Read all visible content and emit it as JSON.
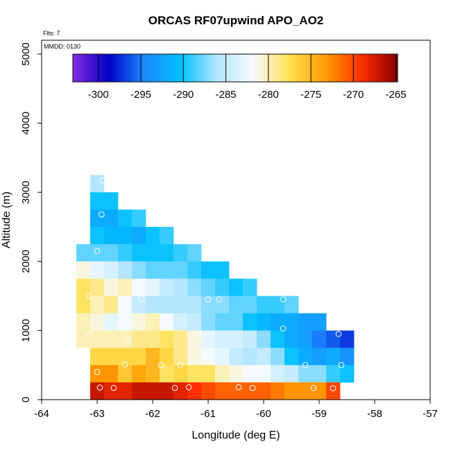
{
  "chart_data": {
    "type": "heatmap",
    "title": "ORCAS RF07upwind APO_AO2",
    "note_top": "Flts: 7",
    "note_inner": "MMDD: 0130",
    "xlabel": "Longitude (deg E)",
    "ylabel": "Altitude (m)",
    "xlim": [
      -64,
      -57
    ],
    "ylim": [
      0,
      5200
    ],
    "xticks": [
      -64,
      -63,
      -62,
      -61,
      -60,
      -59,
      -58,
      -57
    ],
    "yticks": [
      0,
      1000,
      2000,
      3000,
      4000,
      5000
    ],
    "grid": false,
    "colorbar": {
      "range": [
        -303,
        -264.8
      ],
      "ticks": [
        -300,
        -295,
        -290,
        -285,
        -280,
        -275,
        -270,
        -265
      ],
      "placement": "top inside plot"
    },
    "cell_size": {
      "lon": 0.25,
      "alt": 250
    },
    "cells": [
      [
        -63.0,
        3125,
        -286
      ],
      [
        -63.0,
        2875,
        -290
      ],
      [
        -62.75,
        2875,
        -290
      ],
      [
        -63.0,
        2625,
        -292
      ],
      [
        -62.75,
        2625,
        -292
      ],
      [
        -62.5,
        2625,
        -290
      ],
      [
        -62.25,
        2625,
        -289
      ],
      [
        -63.0,
        2375,
        -290
      ],
      [
        -62.75,
        2375,
        -291
      ],
      [
        -62.5,
        2375,
        -291
      ],
      [
        -62.25,
        2375,
        -292
      ],
      [
        -62.0,
        2375,
        -290
      ],
      [
        -61.75,
        2375,
        -289
      ],
      [
        -63.25,
        2125,
        -288
      ],
      [
        -63.0,
        2125,
        -288
      ],
      [
        -62.75,
        2125,
        -288
      ],
      [
        -62.5,
        2125,
        -289
      ],
      [
        -62.25,
        2125,
        -290
      ],
      [
        -62.0,
        2125,
        -290
      ],
      [
        -61.75,
        2125,
        -290
      ],
      [
        -61.5,
        2125,
        -289
      ],
      [
        -61.25,
        2125,
        -288
      ],
      [
        -63.25,
        1875,
        -281
      ],
      [
        -63.0,
        1875,
        -283
      ],
      [
        -62.75,
        1875,
        -284
      ],
      [
        -62.5,
        1875,
        -286
      ],
      [
        -62.25,
        1875,
        -287
      ],
      [
        -62.0,
        1875,
        -288
      ],
      [
        -61.75,
        1875,
        -288
      ],
      [
        -61.5,
        1875,
        -288
      ],
      [
        -61.25,
        1875,
        -289
      ],
      [
        -61.0,
        1875,
        -290
      ],
      [
        -60.75,
        1875,
        -290
      ],
      [
        -63.25,
        1625,
        -278
      ],
      [
        -63.0,
        1625,
        -279
      ],
      [
        -62.75,
        1625,
        -281
      ],
      [
        -62.5,
        1625,
        -280
      ],
      [
        -62.25,
        1625,
        -282
      ],
      [
        -62.0,
        1625,
        -283
      ],
      [
        -61.75,
        1625,
        -285
      ],
      [
        -61.5,
        1625,
        -286
      ],
      [
        -61.25,
        1625,
        -287
      ],
      [
        -61.0,
        1625,
        -288
      ],
      [
        -60.75,
        1625,
        -289
      ],
      [
        -60.5,
        1625,
        -290
      ],
      [
        -60.25,
        1625,
        -289
      ],
      [
        -63.25,
        1375,
        -278
      ],
      [
        -63.0,
        1375,
        -280
      ],
      [
        -62.75,
        1375,
        -279
      ],
      [
        -62.5,
        1375,
        -282
      ],
      [
        -62.25,
        1375,
        -285
      ],
      [
        -62.0,
        1375,
        -286
      ],
      [
        -61.75,
        1375,
        -286
      ],
      [
        -61.5,
        1375,
        -286
      ],
      [
        -61.25,
        1375,
        -286
      ],
      [
        -61.0,
        1375,
        -287
      ],
      [
        -60.75,
        1375,
        -287
      ],
      [
        -60.5,
        1375,
        -288
      ],
      [
        -60.25,
        1375,
        -288
      ],
      [
        -60.0,
        1375,
        -289
      ],
      [
        -59.75,
        1375,
        -289
      ],
      [
        -59.5,
        1375,
        -288
      ],
      [
        -63.25,
        1125,
        -280
      ],
      [
        -63.0,
        1125,
        -281
      ],
      [
        -62.75,
        1125,
        -283
      ],
      [
        -62.5,
        1125,
        -282
      ],
      [
        -62.25,
        1125,
        -281
      ],
      [
        -62.0,
        1125,
        -280
      ],
      [
        -61.75,
        1125,
        -282
      ],
      [
        -61.5,
        1125,
        -284
      ],
      [
        -61.25,
        1125,
        -285
      ],
      [
        -61.0,
        1125,
        -287
      ],
      [
        -60.75,
        1125,
        -288
      ],
      [
        -60.5,
        1125,
        -288
      ],
      [
        -60.25,
        1125,
        -290
      ],
      [
        -60.0,
        1125,
        -291
      ],
      [
        -59.75,
        1125,
        -292
      ],
      [
        -59.5,
        1125,
        -292
      ],
      [
        -59.25,
        1125,
        -293
      ],
      [
        -59.0,
        1125,
        -293
      ],
      [
        -63.25,
        875,
        -280
      ],
      [
        -63.0,
        875,
        -280
      ],
      [
        -62.75,
        875,
        -280
      ],
      [
        -62.5,
        875,
        -280
      ],
      [
        -62.25,
        875,
        -279
      ],
      [
        -62.0,
        875,
        -279
      ],
      [
        -61.75,
        875,
        -278
      ],
      [
        -61.5,
        875,
        -279
      ],
      [
        -61.25,
        875,
        -281
      ],
      [
        -61.0,
        875,
        -283
      ],
      [
        -60.75,
        875,
        -284
      ],
      [
        -60.5,
        875,
        -284
      ],
      [
        -60.25,
        875,
        -285
      ],
      [
        -60.0,
        875,
        -287
      ],
      [
        -59.75,
        875,
        -290
      ],
      [
        -59.5,
        875,
        -292
      ],
      [
        -59.25,
        875,
        -293
      ],
      [
        -59.0,
        875,
        -295
      ],
      [
        -58.75,
        875,
        -296
      ],
      [
        -58.5,
        875,
        -297
      ],
      [
        -63.0,
        625,
        -277
      ],
      [
        -62.75,
        625,
        -277
      ],
      [
        -62.5,
        625,
        -277
      ],
      [
        -62.25,
        625,
        -277
      ],
      [
        -62.0,
        625,
        -275
      ],
      [
        -61.75,
        625,
        -277
      ],
      [
        -61.5,
        625,
        -279
      ],
      [
        -61.25,
        625,
        -281
      ],
      [
        -61.0,
        625,
        -282
      ],
      [
        -60.75,
        625,
        -283
      ],
      [
        -60.5,
        625,
        -285
      ],
      [
        -60.25,
        625,
        -286
      ],
      [
        -60.0,
        625,
        -285
      ],
      [
        -59.75,
        625,
        -287
      ],
      [
        -59.5,
        625,
        -290
      ],
      [
        -59.25,
        625,
        -292
      ],
      [
        -59.0,
        625,
        -293
      ],
      [
        -58.75,
        625,
        -292
      ],
      [
        -58.5,
        625,
        -294
      ],
      [
        -63.0,
        375,
        -273
      ],
      [
        -62.75,
        375,
        -273
      ],
      [
        -62.5,
        375,
        -276
      ],
      [
        -62.25,
        375,
        -274
      ],
      [
        -62.0,
        375,
        -275
      ],
      [
        -61.75,
        375,
        -278
      ],
      [
        -61.5,
        375,
        -277
      ],
      [
        -61.25,
        375,
        -278
      ],
      [
        -61.0,
        375,
        -278
      ],
      [
        -60.75,
        375,
        -280
      ],
      [
        -60.5,
        375,
        -281
      ],
      [
        -60.25,
        375,
        -282
      ],
      [
        -60.0,
        375,
        -282
      ],
      [
        -59.75,
        375,
        -284
      ],
      [
        -59.5,
        375,
        -285
      ],
      [
        -59.25,
        375,
        -287
      ],
      [
        -59.0,
        375,
        -287
      ],
      [
        -58.75,
        375,
        -289
      ],
      [
        -58.5,
        375,
        -290
      ],
      [
        -63.0,
        125,
        -267
      ],
      [
        -62.75,
        125,
        -268
      ],
      [
        -62.5,
        125,
        -268
      ],
      [
        -62.25,
        125,
        -267
      ],
      [
        -62.0,
        125,
        -267
      ],
      [
        -61.75,
        125,
        -267
      ],
      [
        -61.5,
        125,
        -268
      ],
      [
        -61.25,
        125,
        -269
      ],
      [
        -61.0,
        125,
        -270
      ],
      [
        -60.75,
        125,
        -271
      ],
      [
        -60.5,
        125,
        -271
      ],
      [
        -60.25,
        125,
        -271
      ],
      [
        -60.0,
        125,
        -271
      ],
      [
        -59.75,
        125,
        -272
      ],
      [
        -59.5,
        125,
        -273
      ],
      [
        -59.25,
        125,
        -273
      ],
      [
        -59.0,
        125,
        -273
      ],
      [
        -58.75,
        125,
        -270
      ]
    ],
    "markers": [
      [
        -62.9,
        3170
      ],
      [
        -62.92,
        2680
      ],
      [
        -63.0,
        2150
      ],
      [
        -63.15,
        1500
      ],
      [
        -62.2,
        1460
      ],
      [
        -61.0,
        1450
      ],
      [
        -60.8,
        1450
      ],
      [
        -59.65,
        1450
      ],
      [
        -63.15,
        950
      ],
      [
        -62.45,
        850
      ],
      [
        -61.1,
        950
      ],
      [
        -59.65,
        1030
      ],
      [
        -58.65,
        950
      ],
      [
        -63.0,
        400
      ],
      [
        -62.5,
        510
      ],
      [
        -61.85,
        500
      ],
      [
        -61.5,
        500
      ],
      [
        -59.25,
        500
      ],
      [
        -58.6,
        500
      ],
      [
        -62.95,
        175
      ],
      [
        -62.7,
        170
      ],
      [
        -61.6,
        170
      ],
      [
        -61.35,
        180
      ],
      [
        -60.45,
        180
      ],
      [
        -60.2,
        170
      ],
      [
        -59.1,
        170
      ],
      [
        -58.75,
        165
      ]
    ]
  },
  "colors": {
    "colorbar_stops": [
      "#8a2be2",
      "#0000c8",
      "#1e8cff",
      "#00c0ff",
      "#b4e6ff",
      "#f8fbff",
      "#ffe050",
      "#ff9c00",
      "#ff3000",
      "#8b0000"
    ]
  }
}
